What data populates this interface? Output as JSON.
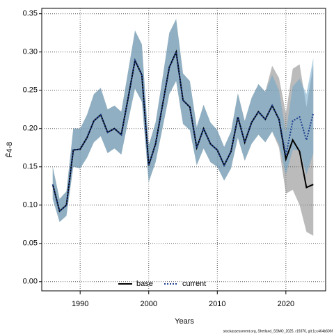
{
  "chart_data": {
    "type": "line",
    "xlabel": "Years",
    "ylabel": "F̄4-8",
    "footnote": "stockassessment.org, Shetland_SSMO_2025, r19370, git:1cc464b606f",
    "x": [
      1986,
      1987,
      1988,
      1989,
      1990,
      1991,
      1992,
      1993,
      1994,
      1995,
      1996,
      1997,
      1998,
      1999,
      2000,
      2001,
      2002,
      2003,
      2004,
      2005,
      2006,
      2007,
      2008,
      2009,
      2010,
      2011,
      2012,
      2013,
      2014,
      2015,
      2016,
      2017,
      2018,
      2019,
      2020,
      2021,
      2022,
      2023,
      2024
    ],
    "xlim": [
      1984.4,
      2025.8
    ],
    "xticks": [
      1990,
      2000,
      2010,
      2020
    ],
    "ylim": [
      -0.012,
      0.357
    ],
    "yticks": [
      {
        "value": 0,
        "label": "0.00"
      },
      {
        "value": 0.05,
        "label": "0.05"
      },
      {
        "value": 0.1,
        "label": "0.10"
      },
      {
        "value": 0.15,
        "label": "0.15"
      },
      {
        "value": 0.2,
        "label": "0.20"
      },
      {
        "value": 0.25,
        "label": "0.25"
      },
      {
        "value": 0.3,
        "label": "0.30"
      },
      {
        "value": 0.35,
        "label": "0.35"
      }
    ],
    "grid": true,
    "legend": "bottom",
    "series": [
      {
        "name": "base",
        "color": "#000000",
        "linestyle": "solid",
        "band_color": "rgba(120,120,120,0.5)",
        "values": [
          0.127,
          0.092,
          0.1,
          0.172,
          0.173,
          0.188,
          0.21,
          0.218,
          0.195,
          0.2,
          0.192,
          0.24,
          0.289,
          0.27,
          0.152,
          0.18,
          0.23,
          0.28,
          0.3,
          0.237,
          0.228,
          0.175,
          0.2,
          0.18,
          0.172,
          0.152,
          0.17,
          0.215,
          0.182,
          0.208,
          0.222,
          0.212,
          0.23,
          0.212,
          0.16,
          0.185,
          0.17,
          0.123,
          0.127
        ],
        "lower": [
          0.108,
          0.078,
          0.086,
          0.15,
          0.148,
          0.162,
          0.182,
          0.19,
          0.168,
          0.174,
          0.166,
          0.21,
          0.252,
          0.235,
          0.13,
          0.156,
          0.2,
          0.245,
          0.262,
          0.206,
          0.198,
          0.152,
          0.174,
          0.156,
          0.15,
          0.132,
          0.148,
          0.188,
          0.158,
          0.18,
          0.192,
          0.182,
          0.196,
          0.175,
          0.115,
          0.12,
          0.1,
          0.065,
          0.06
        ],
        "upper": [
          0.15,
          0.108,
          0.118,
          0.2,
          0.2,
          0.218,
          0.245,
          0.253,
          0.225,
          0.23,
          0.222,
          0.275,
          0.328,
          0.31,
          0.178,
          0.208,
          0.265,
          0.325,
          0.343,
          0.272,
          0.262,
          0.202,
          0.231,
          0.208,
          0.198,
          0.176,
          0.196,
          0.246,
          0.21,
          0.24,
          0.258,
          0.248,
          0.282,
          0.266,
          0.22,
          0.278,
          0.284,
          0.228,
          0.282
        ]
      },
      {
        "name": "current",
        "color": "#1f3f8f",
        "linestyle": "dotted",
        "band_color": "rgba(110,165,200,0.55)",
        "values": [
          0.127,
          0.092,
          0.1,
          0.172,
          0.173,
          0.188,
          0.21,
          0.218,
          0.195,
          0.2,
          0.192,
          0.24,
          0.289,
          0.27,
          0.152,
          0.18,
          0.23,
          0.28,
          0.3,
          0.237,
          0.228,
          0.175,
          0.2,
          0.18,
          0.172,
          0.152,
          0.17,
          0.215,
          0.182,
          0.208,
          0.222,
          0.212,
          0.23,
          0.212,
          0.165,
          0.21,
          0.215,
          0.185,
          0.22
        ],
        "lower": [
          0.108,
          0.078,
          0.086,
          0.15,
          0.148,
          0.162,
          0.182,
          0.19,
          0.168,
          0.174,
          0.166,
          0.21,
          0.252,
          0.235,
          0.13,
          0.156,
          0.2,
          0.245,
          0.262,
          0.206,
          0.198,
          0.152,
          0.174,
          0.156,
          0.15,
          0.132,
          0.148,
          0.188,
          0.158,
          0.18,
          0.192,
          0.182,
          0.196,
          0.18,
          0.14,
          0.172,
          0.172,
          0.14,
          0.168
        ],
        "upper": [
          0.15,
          0.108,
          0.118,
          0.2,
          0.2,
          0.218,
          0.245,
          0.253,
          0.225,
          0.23,
          0.222,
          0.275,
          0.328,
          0.31,
          0.178,
          0.208,
          0.265,
          0.325,
          0.343,
          0.272,
          0.262,
          0.202,
          0.231,
          0.208,
          0.198,
          0.176,
          0.196,
          0.246,
          0.21,
          0.24,
          0.258,
          0.248,
          0.27,
          0.25,
          0.195,
          0.255,
          0.265,
          0.245,
          0.292
        ]
      }
    ]
  }
}
